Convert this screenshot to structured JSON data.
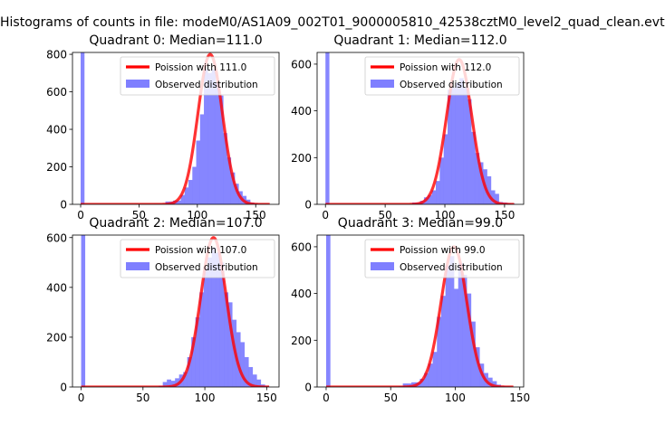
{
  "suptitle": "Histograms of counts in file: modeM0/AS1A09_002T01_9000005810_42538cztM0_level2_quad_clean.evt",
  "colors": {
    "hist": "#7f7fff",
    "poisson": "#ff0000",
    "hist_label_bg": "#ffffff"
  },
  "chart_data": [
    {
      "type": "bar",
      "title": "Quadrant 0: Median=111.0",
      "xlim": [
        -7,
        170
      ],
      "ylim": [
        0,
        810
      ],
      "xticks": [
        0,
        50,
        100,
        150
      ],
      "yticks": [
        0,
        200,
        400,
        600,
        800
      ],
      "legend": {
        "placement": "top-right",
        "entries": [
          "Poission with 111.0",
          "Observed distribution"
        ]
      },
      "poisson_mean": 111,
      "poisson_peak": 800,
      "poisson_sigma": 10.5,
      "zero_bin_value": 810,
      "bin_start": 0,
      "bin_width": 3.3,
      "histogram": {
        "x": [
          62.7,
          66.0,
          69.3,
          72.6,
          75.9,
          79.2,
          82.5,
          85.8,
          89.1,
          92.4,
          95.7,
          99.0,
          102.3,
          105.6,
          108.9,
          112.2,
          115.5,
          118.8,
          122.1,
          125.4,
          128.7,
          132.0,
          135.3,
          138.6,
          141.9,
          145.2,
          148.5,
          151.8,
          155.1,
          158.4
        ],
        "values": [
          2,
          2,
          2,
          15,
          15,
          20,
          20,
          50,
          90,
          130,
          200,
          340,
          480,
          720,
          700,
          720,
          650,
          580,
          380,
          250,
          170,
          110,
          70,
          45,
          25,
          10,
          5,
          3,
          3,
          3
        ]
      }
    },
    {
      "type": "bar",
      "title": "Quadrant 1: Median=112.0",
      "xlim": [
        -7,
        166
      ],
      "ylim": [
        0,
        650
      ],
      "xticks": [
        0,
        50,
        100,
        150
      ],
      "yticks": [
        0,
        200,
        400,
        600
      ],
      "legend": {
        "placement": "top-right",
        "entries": [
          "Poission with 112.0",
          "Observed distribution"
        ]
      },
      "poisson_mean": 112,
      "poisson_peak": 620,
      "poisson_sigma": 10.6,
      "zero_bin_value": 650,
      "bin_start": 0,
      "bin_width": 3.3,
      "histogram": {
        "x": [
          72.6,
          75.9,
          79.2,
          82.5,
          85.8,
          89.1,
          92.4,
          95.7,
          99.0,
          102.3,
          105.6,
          108.9,
          112.2,
          115.5,
          118.8,
          122.1,
          125.4,
          128.7,
          132.0,
          135.3,
          138.6,
          141.9,
          145.2,
          148.5,
          151.8,
          155.1
        ],
        "values": [
          8,
          8,
          15,
          30,
          40,
          60,
          100,
          200,
          300,
          490,
          500,
          520,
          540,
          500,
          450,
          310,
          220,
          180,
          150,
          120,
          60,
          45,
          10,
          8,
          5,
          3
        ]
      }
    },
    {
      "type": "bar",
      "title": "Quadrant 2: Median=107.0",
      "xlim": [
        -7,
        160
      ],
      "ylim": [
        0,
        610
      ],
      "xticks": [
        0,
        50,
        100,
        150
      ],
      "yticks": [
        0,
        200,
        400,
        600
      ],
      "legend": {
        "placement": "top-right",
        "entries": [
          "Poission with 107.0",
          "Observed distribution"
        ]
      },
      "poisson_mean": 107,
      "poisson_peak": 600,
      "poisson_sigma": 10.3,
      "zero_bin_value": 610,
      "bin_start": 0,
      "bin_width": 3.3,
      "histogram": {
        "x": [
          62.7,
          66.0,
          69.3,
          72.6,
          75.9,
          79.2,
          82.5,
          85.8,
          89.1,
          92.4,
          95.7,
          99.0,
          102.3,
          105.6,
          108.9,
          112.2,
          115.5,
          118.8,
          122.1,
          125.4,
          128.7,
          132.0,
          135.3,
          138.6,
          141.9,
          145.2,
          148.5
        ],
        "values": [
          5,
          20,
          30,
          25,
          35,
          50,
          60,
          120,
          200,
          280,
          380,
          480,
          520,
          560,
          540,
          500,
          380,
          340,
          270,
          220,
          180,
          120,
          80,
          50,
          30,
          10,
          5
        ]
      }
    },
    {
      "type": "bar",
      "title": "Quadrant 3: Median=99.0",
      "xlim": [
        -7,
        153
      ],
      "ylim": [
        0,
        650
      ],
      "xticks": [
        0,
        50,
        100,
        150
      ],
      "yticks": [
        0,
        200,
        400,
        600
      ],
      "legend": {
        "placement": "top-right",
        "entries": [
          "Poission with 99.0",
          "Observed distribution"
        ]
      },
      "poisson_mean": 99,
      "poisson_peak": 600,
      "poisson_sigma": 10.0,
      "zero_bin_value": 650,
      "bin_start": 0,
      "bin_width": 3.3,
      "histogram": {
        "x": [
          49.5,
          52.8,
          56.1,
          59.4,
          62.7,
          66.0,
          69.3,
          72.6,
          75.9,
          79.2,
          82.5,
          85.8,
          89.1,
          92.4,
          95.7,
          99.0,
          102.3,
          105.6,
          108.9,
          112.2,
          115.5,
          118.8,
          122.1,
          125.4,
          128.7,
          132.0,
          135.3,
          138.6,
          141.9
        ],
        "values": [
          2,
          2,
          3,
          15,
          15,
          20,
          20,
          35,
          60,
          100,
          150,
          300,
          390,
          520,
          560,
          420,
          530,
          480,
          400,
          280,
          170,
          100,
          60,
          40,
          25,
          10,
          5,
          3,
          2
        ]
      }
    }
  ]
}
